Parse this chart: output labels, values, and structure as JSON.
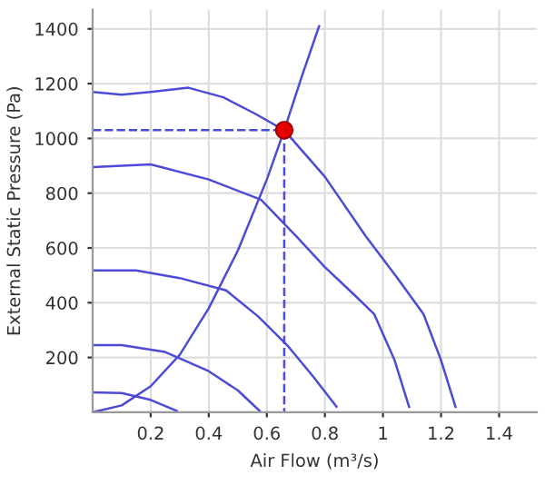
{
  "chart_data": {
    "type": "line",
    "xlabel": "Air Flow (m³/s)",
    "ylabel": "External Static Pressure (Pa)",
    "xlim": [
      0,
      1.53
    ],
    "ylim": [
      0,
      1470
    ],
    "xticks": [
      0.2,
      0.4,
      0.6,
      0.8,
      1,
      1.2,
      1.4
    ],
    "yticks": [
      200,
      400,
      600,
      800,
      1000,
      1200,
      1400
    ],
    "grid": true,
    "marker": "none",
    "line_style": "solid",
    "series": [
      {
        "color": "#4b4bd6",
        "x": [
          0,
          0.1,
          0.2,
          0.33,
          0.45,
          0.56,
          0.66,
          0.8,
          0.94,
          1.05,
          1.14,
          1.2,
          1.25
        ],
        "values": [
          1170,
          1160,
          1170,
          1185,
          1150,
          1090,
          1030,
          860,
          644,
          490,
          358,
          190,
          20
        ]
      },
      {
        "color": "#4b4bd6",
        "x": [
          0,
          0.2,
          0.4,
          0.58,
          0.7,
          0.8,
          0.9,
          0.97,
          1.04,
          1.09
        ],
        "values": [
          895,
          905,
          850,
          776,
          644,
          530,
          430,
          358,
          190,
          20
        ]
      },
      {
        "color": "#4b4bd6",
        "x": [
          0,
          0.15,
          0.3,
          0.46,
          0.57,
          0.67,
          0.76,
          0.84
        ],
        "values": [
          518,
          518,
          490,
          445,
          350,
          245,
          130,
          20
        ]
      },
      {
        "color": "#4b4bd6",
        "x": [
          0,
          0.1,
          0.25,
          0.4,
          0.5,
          0.575
        ],
        "values": [
          245,
          245,
          220,
          150,
          80,
          5
        ]
      },
      {
        "color": "#4b4bd6",
        "x": [
          0,
          0.1,
          0.2,
          0.29
        ],
        "values": [
          73,
          70,
          45,
          5
        ]
      },
      {
        "color": "#4b4bd6",
        "x": [
          0,
          0.1,
          0.2,
          0.3,
          0.4,
          0.5,
          0.6,
          0.66,
          0.72,
          0.78
        ],
        "values": [
          0,
          25,
          95,
          210,
          380,
          590,
          850,
          1030,
          1225,
          1410
        ]
      },
      {
        "color": "#4b4bd6",
        "line_style": "dashed",
        "x": [
          0,
          0.66,
          0.66
        ],
        "values": [
          1030,
          1030,
          0
        ]
      },
      {
        "type": "scatter",
        "color": "#e60000",
        "marker": "circle",
        "x": [
          0.66
        ],
        "values": [
          1030
        ]
      }
    ]
  }
}
